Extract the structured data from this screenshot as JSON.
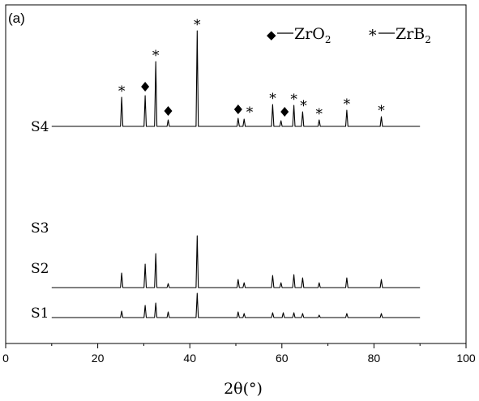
{
  "chart_data": {
    "type": "line",
    "panel_label": "(a)",
    "xlabel": "2θ(°)",
    "xlim": [
      0,
      100
    ],
    "xticks": [
      0,
      20,
      40,
      60,
      80,
      100
    ],
    "y_axis_ticks": false,
    "legend": [
      {
        "symbol": "◆",
        "phase": "ZrO",
        "subscript": "2"
      },
      {
        "symbol": "*",
        "phase": "ZrB",
        "subscript": "2"
      }
    ],
    "series": [
      {
        "name": "S4",
        "x_range": [
          10,
          90
        ],
        "baseline_intensity": 0,
        "peaks": [
          {
            "x": 25.2,
            "y": 36
          },
          {
            "x": 30.3,
            "y": 38
          },
          {
            "x": 32.6,
            "y": 80
          },
          {
            "x": 35.3,
            "y": 8
          },
          {
            "x": 41.6,
            "y": 118
          },
          {
            "x": 50.5,
            "y": 10
          },
          {
            "x": 51.8,
            "y": 9
          },
          {
            "x": 58.0,
            "y": 27
          },
          {
            "x": 59.8,
            "y": 7
          },
          {
            "x": 62.6,
            "y": 26
          },
          {
            "x": 64.5,
            "y": 18
          },
          {
            "x": 68.1,
            "y": 8
          },
          {
            "x": 74.1,
            "y": 20
          },
          {
            "x": 81.6,
            "y": 12
          }
        ],
        "markers": [
          {
            "x": 25.2,
            "symbol": "*"
          },
          {
            "x": 30.3,
            "symbol": "◆"
          },
          {
            "x": 32.6,
            "symbol": "*"
          },
          {
            "x": 35.3,
            "symbol": "◆"
          },
          {
            "x": 41.6,
            "symbol": "*"
          },
          {
            "x": 50.5,
            "symbol": "◆"
          },
          {
            "x": 53.0,
            "symbol": "*"
          },
          {
            "x": 58.0,
            "symbol": "*"
          },
          {
            "x": 60.6,
            "symbol": "◆"
          },
          {
            "x": 62.6,
            "symbol": "*"
          },
          {
            "x": 64.7,
            "symbol": "*"
          },
          {
            "x": 68.1,
            "symbol": "*"
          },
          {
            "x": 74.1,
            "symbol": "*"
          },
          {
            "x": 81.6,
            "symbol": "*"
          }
        ]
      },
      {
        "name": "S3",
        "peaks": []
      },
      {
        "name": "S2",
        "x_range": [
          10,
          90
        ],
        "peaks": [
          {
            "x": 25.2,
            "y": 18
          },
          {
            "x": 30.3,
            "y": 29
          },
          {
            "x": 32.6,
            "y": 42
          },
          {
            "x": 35.3,
            "y": 5
          },
          {
            "x": 41.6,
            "y": 64
          },
          {
            "x": 50.5,
            "y": 10
          },
          {
            "x": 51.8,
            "y": 6
          },
          {
            "x": 58.0,
            "y": 15
          },
          {
            "x": 59.8,
            "y": 6
          },
          {
            "x": 62.6,
            "y": 16
          },
          {
            "x": 64.5,
            "y": 12
          },
          {
            "x": 68.1,
            "y": 6
          },
          {
            "x": 74.1,
            "y": 12
          },
          {
            "x": 81.6,
            "y": 10
          }
        ]
      },
      {
        "name": "S1",
        "x_range": [
          10,
          90
        ],
        "peaks": [
          {
            "x": 25.2,
            "y": 8
          },
          {
            "x": 30.3,
            "y": 15
          },
          {
            "x": 32.6,
            "y": 18
          },
          {
            "x": 35.3,
            "y": 7
          },
          {
            "x": 41.6,
            "y": 30
          },
          {
            "x": 50.5,
            "y": 7
          },
          {
            "x": 51.8,
            "y": 5
          },
          {
            "x": 58.0,
            "y": 6
          },
          {
            "x": 60.3,
            "y": 6
          },
          {
            "x": 62.6,
            "y": 6
          },
          {
            "x": 64.5,
            "y": 5
          },
          {
            "x": 68.1,
            "y": 3
          },
          {
            "x": 74.1,
            "y": 5
          },
          {
            "x": 81.6,
            "y": 5
          }
        ]
      }
    ]
  }
}
